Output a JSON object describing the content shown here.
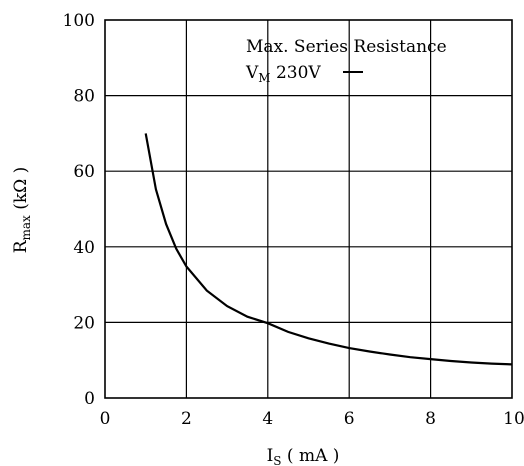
{
  "chart_data": {
    "type": "line",
    "title": "",
    "xlabel": {
      "main": "I",
      "sub": "S",
      "rest": " ( mA )"
    },
    "ylabel": {
      "main": "R",
      "sub": "max",
      "rest": " (kΩ )"
    },
    "xlim": [
      0,
      10
    ],
    "ylim": [
      0,
      100
    ],
    "x_ticks": [
      0,
      2,
      4,
      6,
      8,
      10
    ],
    "y_ticks": [
      0,
      20,
      40,
      60,
      80,
      100
    ],
    "grid": true,
    "annotation": {
      "line1": "Max. Series Resistance",
      "line2_main": "V",
      "line2_sub": "M",
      "line2_rest": " 230V",
      "dc_symbol": "dc-symbol"
    },
    "series": [
      {
        "x": [
          1.0,
          1.25,
          1.5,
          1.75,
          2.0,
          2.5,
          3.0,
          3.5,
          4.0,
          4.5,
          5.0,
          5.5,
          6.0,
          6.5,
          7.0,
          7.5,
          8.0,
          8.5,
          9.0,
          9.5,
          10.0
        ],
        "y": [
          70.0,
          55.2,
          46.0,
          39.5,
          34.8,
          28.4,
          24.3,
          21.5,
          19.8,
          17.5,
          15.8,
          14.4,
          13.2,
          12.3,
          11.5,
          10.8,
          10.3,
          9.8,
          9.4,
          9.1,
          8.9
        ]
      }
    ]
  }
}
